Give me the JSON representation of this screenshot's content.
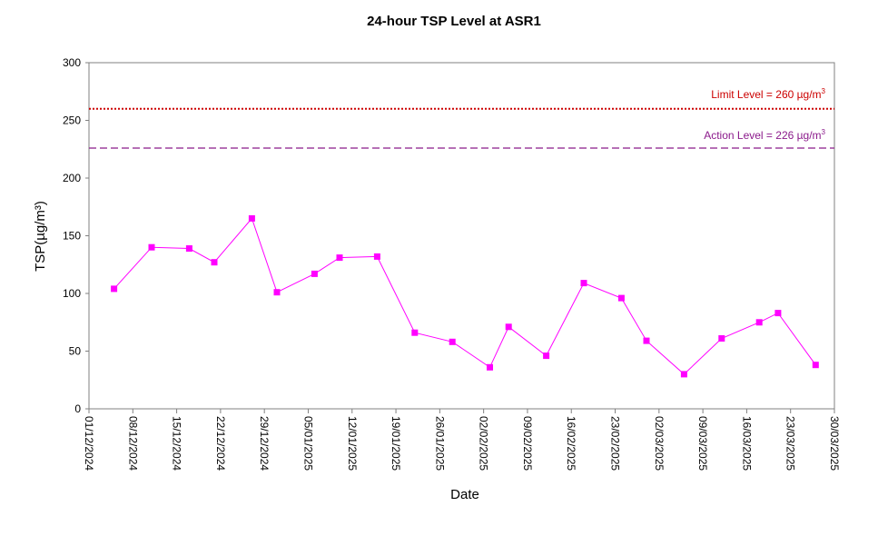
{
  "chart_data": {
    "type": "line",
    "title": "24-hour TSP Level at ASR1",
    "xlabel": "Date",
    "ylabel": "TSP(µg/m³)",
    "ylim": [
      0,
      300
    ],
    "yticks": [
      0,
      50,
      100,
      150,
      200,
      250,
      300
    ],
    "xlim": [
      "2024-12-01",
      "2025-03-30"
    ],
    "xticks": [
      "01/12/2024",
      "08/12/2024",
      "15/12/2024",
      "22/12/2024",
      "29/12/2024",
      "05/01/2025",
      "12/01/2025",
      "19/01/2025",
      "26/01/2025",
      "02/02/2025",
      "09/02/2025",
      "16/02/2025",
      "23/02/2025",
      "02/03/2025",
      "09/03/2025",
      "16/03/2025",
      "23/03/2025",
      "30/03/2025"
    ],
    "grid": false,
    "series": [
      {
        "color": "#ff00ff",
        "marker": "square",
        "points": [
          {
            "x": "2024-12-05",
            "y": 104
          },
          {
            "x": "2024-12-11",
            "y": 140
          },
          {
            "x": "2024-12-17",
            "y": 139
          },
          {
            "x": "2024-12-21",
            "y": 127
          },
          {
            "x": "2024-12-27",
            "y": 165
          },
          {
            "x": "2024-12-31",
            "y": 101
          },
          {
            "x": "2025-01-06",
            "y": 117
          },
          {
            "x": "2025-01-10",
            "y": 131
          },
          {
            "x": "2025-01-16",
            "y": 132
          },
          {
            "x": "2025-01-22",
            "y": 66
          },
          {
            "x": "2025-01-28",
            "y": 58
          },
          {
            "x": "2025-02-03",
            "y": 36
          },
          {
            "x": "2025-02-06",
            "y": 71
          },
          {
            "x": "2025-02-12",
            "y": 46
          },
          {
            "x": "2025-02-18",
            "y": 109
          },
          {
            "x": "2025-02-24",
            "y": 96
          },
          {
            "x": "2025-02-28",
            "y": 59
          },
          {
            "x": "2025-03-06",
            "y": 30
          },
          {
            "x": "2025-03-12",
            "y": 61
          },
          {
            "x": "2025-03-18",
            "y": 75
          },
          {
            "x": "2025-03-21",
            "y": 83
          },
          {
            "x": "2025-03-27",
            "y": 38
          }
        ]
      }
    ],
    "reference_lines": [
      {
        "label": "Limit Level  = 260 µg/m",
        "sup": "3",
        "value": 260,
        "color": "#cc0000",
        "style": "dotted"
      },
      {
        "label": "Action Level  = 226 µg/m",
        "sup": "3",
        "value": 226,
        "color": "#8b1a8b",
        "style": "dashed"
      }
    ]
  }
}
